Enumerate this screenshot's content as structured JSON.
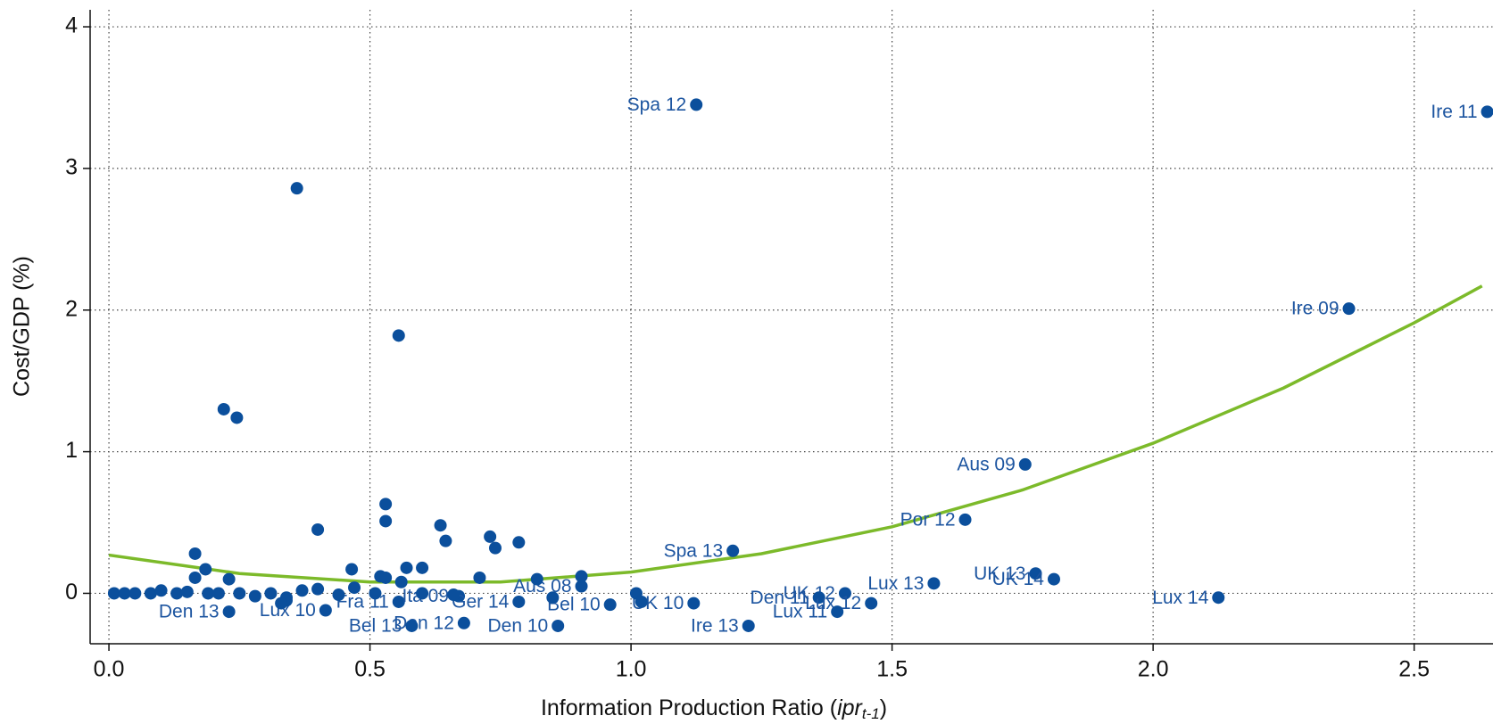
{
  "chart_data": {
    "type": "scatter",
    "xlabel_parts": [
      "Information Production Ratio (",
      "ipr",
      "t-1",
      ")"
    ],
    "ylabel": "Cost/GDP (%)",
    "xlim": [
      -0.036,
      2.651
    ],
    "ylim": [
      -0.356,
      4.12
    ],
    "xticks": [
      {
        "value": 0,
        "label": "0.0"
      },
      0.5,
      {
        "value": 1,
        "label": "1.0"
      },
      1.5,
      {
        "value": 2,
        "label": "2.0"
      },
      2.5
    ],
    "yticks": [
      0,
      1,
      2,
      3,
      4
    ],
    "grid": true,
    "points": {
      "color": "#0b4f9c",
      "label_color": "#1d55a0",
      "x": [
        1.125,
        2.64,
        2.375,
        1.755,
        1.64,
        1.195,
        1.58,
        1.775,
        1.81,
        2.125,
        1.41,
        1.36,
        1.46,
        1.395,
        1.225,
        1.12,
        0.86,
        0.68,
        0.58,
        0.23,
        0.415,
        0.905,
        0.555,
        0.67,
        0.785,
        0.96,
        0.36,
        0.555,
        0.22,
        0.245,
        0.53,
        0.53,
        0.4,
        0.635,
        0.645,
        0.73,
        0.74,
        0.785,
        0.165,
        0.185,
        0.165,
        0.23,
        0.465,
        0.57,
        0.6,
        0.52,
        0.53,
        0.71,
        0.82,
        0.905,
        0.56,
        0.01,
        0.03,
        0.05,
        0.08,
        0.1,
        0.13,
        0.15,
        0.19,
        0.21,
        0.25,
        0.28,
        0.31,
        0.34,
        0.37,
        0.4,
        0.44,
        0.47,
        0.51,
        0.6,
        0.66,
        0.85,
        1.01,
        1.02,
        0.34,
        0.33
      ],
      "y": [
        3.45,
        3.4,
        2.01,
        0.91,
        0.52,
        0.3,
        0.07,
        0.14,
        0.1,
        -0.03,
        0.0,
        -0.03,
        -0.07,
        -0.13,
        -0.23,
        -0.07,
        -0.23,
        -0.21,
        -0.23,
        -0.13,
        -0.12,
        0.05,
        -0.06,
        -0.02,
        -0.06,
        -0.08,
        2.86,
        1.82,
        1.3,
        1.24,
        0.63,
        0.51,
        0.45,
        0.48,
        0.37,
        0.4,
        0.32,
        0.36,
        0.28,
        0.17,
        0.11,
        0.1,
        0.17,
        0.18,
        0.18,
        0.12,
        0.11,
        0.11,
        0.1,
        0.12,
        0.08,
        0.0,
        0.0,
        0.0,
        0.0,
        0.02,
        0.0,
        0.01,
        0.0,
        0.0,
        0.0,
        -0.02,
        0.0,
        -0.03,
        0.02,
        0.03,
        -0.01,
        0.04,
        0.0,
        0.0,
        -0.01,
        -0.03,
        0.0,
        -0.06,
        -0.05,
        -0.07
      ],
      "labels": [
        "Spa 12",
        "Ire 11",
        "Ire 09",
        "Aus 09",
        "Por 12",
        "Spa 13",
        "Lux 13",
        "UK 13",
        "UK 14",
        "Lux 14",
        "UK 12",
        "Den 11",
        "Lux 12",
        "Lux 11",
        "Ire 13",
        "UK 10",
        "Den 10",
        "Den 12",
        "Bel 13",
        "Den 13",
        "Lux 10",
        "Aus 08",
        "Fra 11",
        "Ita 09",
        "Ger 14",
        "Bel 10",
        null,
        null,
        null,
        null,
        null,
        null,
        null,
        null,
        null,
        null,
        null,
        null,
        null,
        null,
        null,
        null,
        null,
        null,
        null,
        null,
        null,
        null,
        null,
        null,
        null,
        null,
        null,
        null,
        null,
        null,
        null,
        null,
        null,
        null,
        null,
        null,
        null,
        null,
        null,
        null,
        null,
        null,
        null,
        null,
        null,
        null,
        null,
        null,
        null,
        null
      ]
    },
    "fit": {
      "color": "#7cba2a",
      "x": [
        0,
        0.25,
        0.5,
        0.75,
        1.0,
        1.25,
        1.5,
        1.75,
        2.0,
        2.25,
        2.5,
        2.63
      ],
      "y": [
        0.27,
        0.14,
        0.08,
        0.08,
        0.15,
        0.28,
        0.47,
        0.73,
        1.06,
        1.45,
        1.91,
        2.17
      ]
    }
  }
}
